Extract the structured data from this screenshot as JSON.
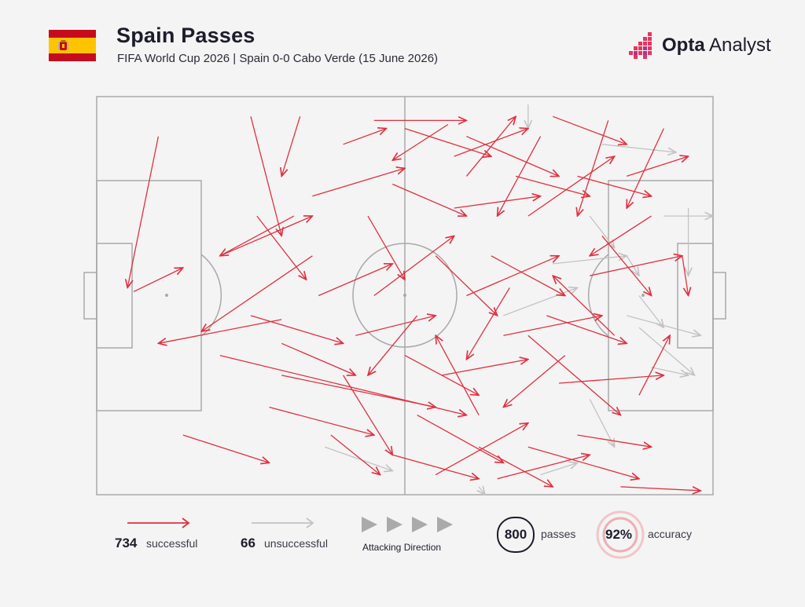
{
  "header": {
    "title": "Spain Passes",
    "subtitle": "FIFA World Cup 2026 | Spain 0-0 Cabo Verde (15 June 2026)",
    "brand_bold": "Opta",
    "brand_light": " Analyst"
  },
  "legend": {
    "successful_count": "734",
    "successful_label": "successful",
    "unsuccessful_count": "66",
    "unsuccessful_label": "unsuccessful",
    "direction_label": "Attacking Direction",
    "passes_count": "800",
    "passes_label": "passes",
    "accuracy_value": "92%",
    "accuracy_label": "accuracy"
  },
  "colors": {
    "successful": "#e0303f",
    "unsuccessful": "#c3c3c3",
    "pitch_lines": "#a9a9a9",
    "text": "#1c1c2b",
    "flag_red": "#c60b1e",
    "flag_yellow": "#ffc400"
  },
  "chart_data": {
    "type": "pass-map",
    "title": "Spain Passes",
    "subtitle": "FIFA World Cup 2026 | Spain 0-0 Cabo Verde (15 June 2026)",
    "pitch": {
      "length": 100,
      "width": 100,
      "attacking_direction": "left-to-right"
    },
    "totals": {
      "passes": 800,
      "successful": 734,
      "unsuccessful": 66,
      "accuracy_pct": 92
    },
    "note": "Representative sample of the visible passes (Opta 0-100 pitch coordinates, x toward attacking goal, y from top touchline).",
    "successful_passes": [
      [
        10,
        10,
        5,
        48
      ],
      [
        6,
        49,
        14,
        43
      ],
      [
        25,
        5,
        30,
        35
      ],
      [
        33,
        5,
        30,
        20
      ],
      [
        45,
        6,
        60,
        6
      ],
      [
        32,
        30,
        20,
        40
      ],
      [
        40,
        12,
        47,
        8
      ],
      [
        57,
        7,
        48,
        16
      ],
      [
        60,
        20,
        68,
        5
      ],
      [
        72,
        10,
        65,
        30
      ],
      [
        83,
        6,
        78,
        30
      ],
      [
        92,
        8,
        86,
        28
      ],
      [
        35,
        40,
        17,
        59
      ],
      [
        30,
        56,
        10,
        62
      ],
      [
        20,
        65,
        60,
        80
      ],
      [
        30,
        70,
        55,
        78
      ],
      [
        28,
        78,
        45,
        85
      ],
      [
        14,
        85,
        28,
        92
      ],
      [
        55,
        95,
        70,
        82
      ],
      [
        65,
        96,
        80,
        90
      ],
      [
        70,
        88,
        88,
        96
      ],
      [
        85,
        98,
        98,
        99
      ],
      [
        60,
        50,
        75,
        40
      ],
      [
        66,
        60,
        82,
        55
      ],
      [
        75,
        72,
        92,
        70
      ],
      [
        80,
        45,
        95,
        40
      ],
      [
        70,
        30,
        84,
        15
      ],
      [
        55,
        40,
        65,
        55
      ],
      [
        62,
        80,
        55,
        60
      ],
      [
        50,
        65,
        62,
        75
      ],
      [
        45,
        50,
        58,
        35
      ],
      [
        40,
        70,
        48,
        90
      ],
      [
        25,
        55,
        40,
        62
      ],
      [
        20,
        40,
        35,
        30
      ],
      [
        35,
        25,
        50,
        18
      ],
      [
        44,
        30,
        50,
        46
      ],
      [
        73,
        55,
        86,
        62
      ],
      [
        78,
        20,
        90,
        25
      ],
      [
        82,
        35,
        90,
        50
      ],
      [
        95,
        40,
        96,
        50
      ],
      [
        88,
        75,
        93,
        60
      ],
      [
        58,
        28,
        72,
        25
      ],
      [
        64,
        40,
        76,
        50
      ],
      [
        68,
        20,
        80,
        25
      ],
      [
        52,
        80,
        66,
        92
      ],
      [
        48,
        90,
        62,
        96
      ],
      [
        56,
        70,
        70,
        66
      ],
      [
        60,
        10,
        75,
        20
      ],
      [
        74,
        5,
        86,
        12
      ],
      [
        86,
        20,
        96,
        15
      ],
      [
        70,
        60,
        85,
        80
      ],
      [
        78,
        85,
        90,
        88
      ],
      [
        62,
        88,
        74,
        98
      ],
      [
        48,
        22,
        60,
        30
      ],
      [
        42,
        60,
        55,
        55
      ],
      [
        38,
        85,
        46,
        95
      ],
      [
        52,
        55,
        44,
        70
      ],
      [
        67,
        48,
        60,
        66
      ],
      [
        76,
        65,
        66,
        78
      ],
      [
        84,
        60,
        74,
        45
      ],
      [
        90,
        30,
        80,
        40
      ],
      [
        58,
        15,
        70,
        8
      ],
      [
        50,
        8,
        64,
        15
      ],
      [
        36,
        50,
        48,
        42
      ],
      [
        26,
        30,
        34,
        46
      ],
      [
        30,
        62,
        42,
        70
      ]
    ],
    "unsuccessful_passes": [
      [
        70,
        2,
        70,
        8
      ],
      [
        82,
        12,
        94,
        14
      ],
      [
        86,
        40,
        88,
        45
      ],
      [
        92,
        30,
        100,
        30
      ],
      [
        96,
        28,
        96,
        45
      ],
      [
        86,
        55,
        98,
        60
      ],
      [
        88,
        58,
        97,
        70
      ],
      [
        66,
        55,
        78,
        48
      ],
      [
        74,
        42,
        86,
        40
      ],
      [
        80,
        76,
        84,
        88
      ],
      [
        37,
        88,
        48,
        94
      ],
      [
        72,
        95,
        78,
        92
      ],
      [
        88,
        50,
        92,
        58
      ],
      [
        80,
        30,
        84,
        38
      ],
      [
        62,
        98,
        63,
        100
      ],
      [
        90,
        68,
        96,
        70
      ]
    ]
  }
}
